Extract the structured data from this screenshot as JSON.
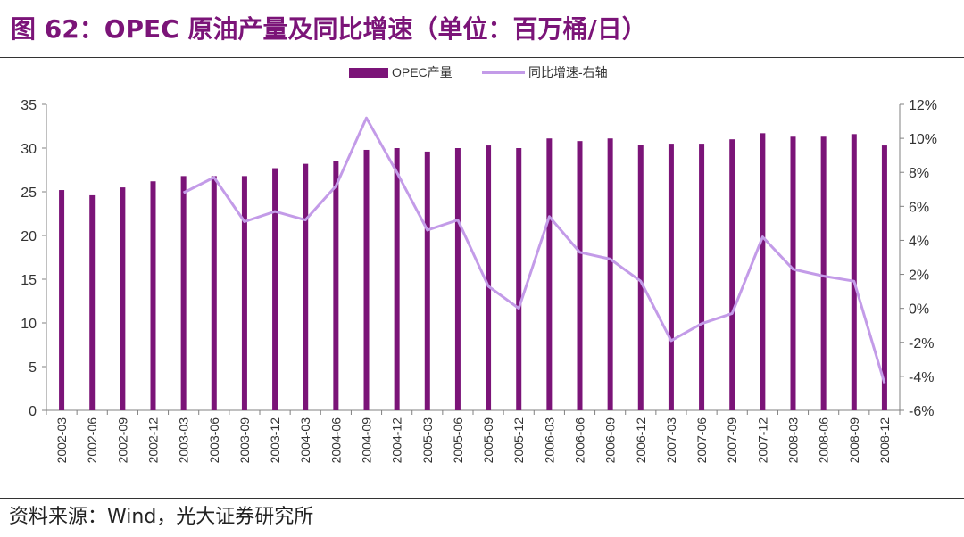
{
  "header": {
    "title": "图 62：OPEC 原油产量及同比增速（单位：百万桶/日）"
  },
  "footer": {
    "source": "资料来源：Wind，光大证券研究所"
  },
  "colors": {
    "title": "#7b1478",
    "bar": "#7b1478",
    "line": "#c39be8",
    "axis": "#808080",
    "text": "#333333"
  },
  "chart_data": {
    "type": "bar",
    "title": "",
    "xlabel": "",
    "ylabel": "",
    "ylim": [
      0,
      35
    ],
    "y_ticks": [
      0,
      5,
      10,
      15,
      20,
      25,
      30,
      35
    ],
    "y2lim": [
      -6,
      12
    ],
    "y2_ticks": [
      "-6%",
      "-4%",
      "-2%",
      "0%",
      "2%",
      "4%",
      "6%",
      "8%",
      "10%",
      "12%"
    ],
    "grid": false,
    "legend": "top-center",
    "categories": [
      "2002-03",
      "2002-06",
      "2002-09",
      "2002-12",
      "2003-03",
      "2003-06",
      "2003-09",
      "2003-12",
      "2004-03",
      "2004-06",
      "2004-09",
      "2004-12",
      "2005-03",
      "2005-06",
      "2005-09",
      "2005-12",
      "2006-03",
      "2006-06",
      "2006-09",
      "2006-12",
      "2007-03",
      "2007-06",
      "2007-09",
      "2007-12",
      "2008-03",
      "2008-06",
      "2008-09",
      "2008-12"
    ],
    "series": [
      {
        "name": "OPEC产量",
        "type": "bar",
        "axis": "left",
        "values": [
          25.2,
          24.6,
          25.5,
          26.2,
          26.8,
          26.8,
          26.8,
          27.7,
          28.2,
          28.5,
          29.8,
          30.0,
          29.6,
          30.0,
          30.3,
          30.0,
          31.1,
          30.8,
          31.1,
          30.4,
          30.5,
          30.5,
          31.0,
          31.7,
          31.3,
          31.3,
          31.6,
          30.3
        ]
      },
      {
        "name": "同比增速-右轴",
        "type": "line",
        "axis": "right",
        "unit": "%",
        "values": [
          null,
          null,
          null,
          null,
          6.8,
          7.7,
          5.1,
          5.7,
          5.2,
          7.2,
          11.2,
          8.0,
          4.6,
          5.2,
          1.3,
          0.0,
          5.4,
          3.3,
          2.9,
          1.6,
          -1.9,
          -0.9,
          -0.3,
          4.2,
          2.3,
          1.9,
          1.6,
          -4.4
        ]
      }
    ]
  }
}
